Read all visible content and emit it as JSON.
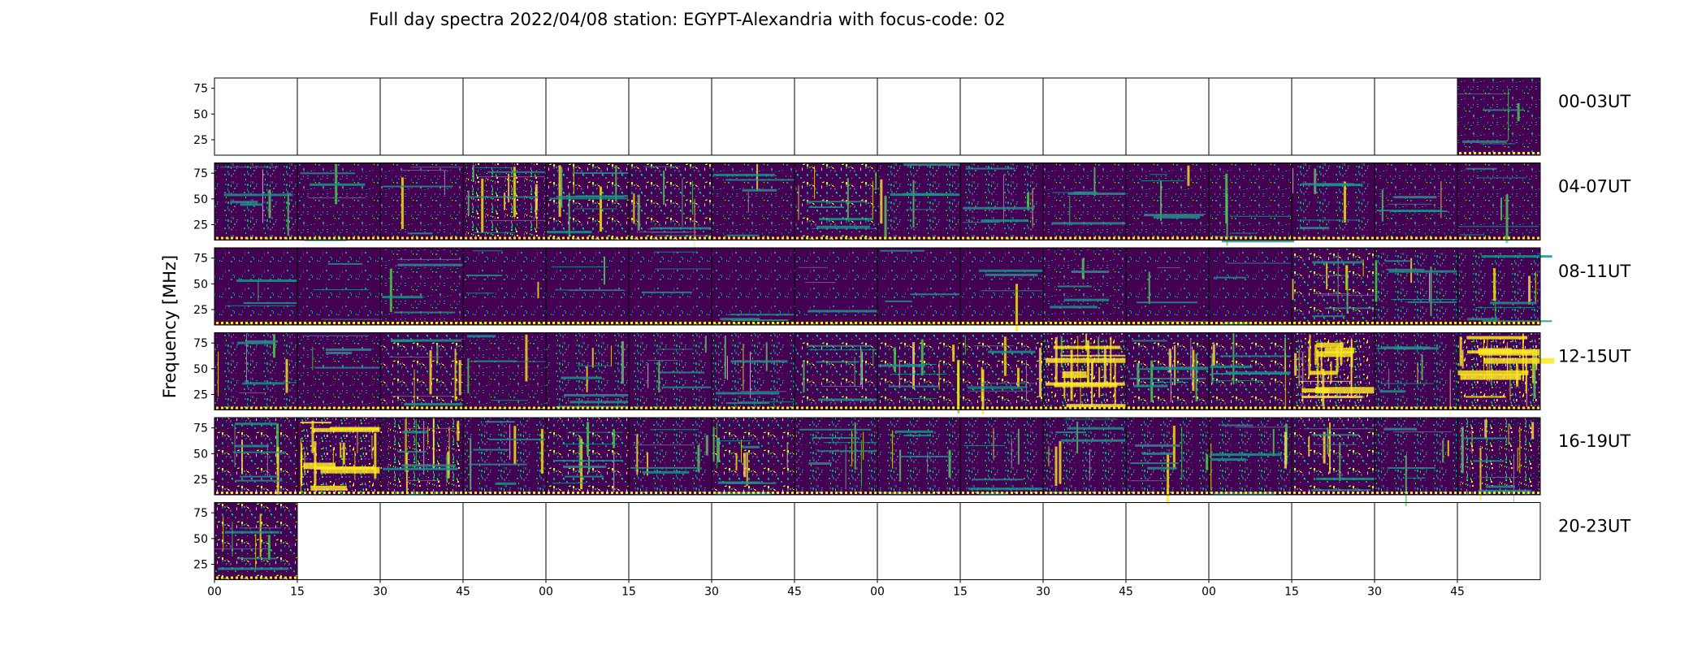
{
  "chart_data": {
    "type": "heatmap",
    "title": "Full day spectra 2022/04/08 station: EGYPT-Alexandria with focus-code: 02",
    "ylabel": "Frequency [MHz]",
    "xlabel": "",
    "yticks": [
      "25",
      "50",
      "75"
    ],
    "ytick_values": [
      25,
      50,
      75
    ],
    "ylim": [
      10,
      85
    ],
    "xticks": [
      "00",
      "15",
      "30",
      "45",
      "00",
      "15",
      "30",
      "45",
      "00",
      "15",
      "30",
      "45",
      "00",
      "15",
      "30",
      "45"
    ],
    "rows": [
      "00-03UT",
      "04-07UT",
      "08-11UT",
      "12-15UT",
      "16-19UT",
      "20-23UT"
    ],
    "panels_per_row": 16,
    "panel_minutes": 15,
    "colormap": [
      "#440154",
      "#3b528b",
      "#21918c",
      "#5ec962",
      "#fde725"
    ],
    "activity": [
      [
        0,
        0,
        0,
        0,
        0,
        0,
        0,
        0,
        0,
        0,
        0,
        0,
        0,
        0,
        0,
        0.3
      ],
      [
        0.4,
        0.25,
        0.3,
        0.7,
        0.6,
        0.6,
        0.35,
        0.55,
        0.4,
        0.4,
        0.3,
        0.35,
        0.3,
        0.4,
        0.35,
        0.35
      ],
      [
        0.2,
        0.15,
        0.25,
        0.2,
        0.2,
        0.15,
        0.15,
        0.15,
        0.15,
        0.2,
        0.25,
        0.2,
        0.15,
        0.6,
        0.45,
        0.45
      ],
      [
        0.45,
        0.25,
        0.55,
        0.3,
        0.45,
        0.4,
        0.5,
        0.55,
        0.65,
        0.65,
        0.9,
        0.65,
        0.55,
        0.95,
        0.45,
        0.95
      ],
      [
        0.55,
        0.9,
        0.8,
        0.45,
        0.6,
        0.45,
        0.65,
        0.5,
        0.45,
        0.4,
        0.5,
        0.45,
        0.45,
        0.55,
        0.4,
        0.7
      ],
      [
        0.55,
        0,
        0,
        0,
        0,
        0,
        0,
        0,
        0,
        0,
        0,
        0,
        0,
        0,
        0,
        0
      ]
    ]
  }
}
